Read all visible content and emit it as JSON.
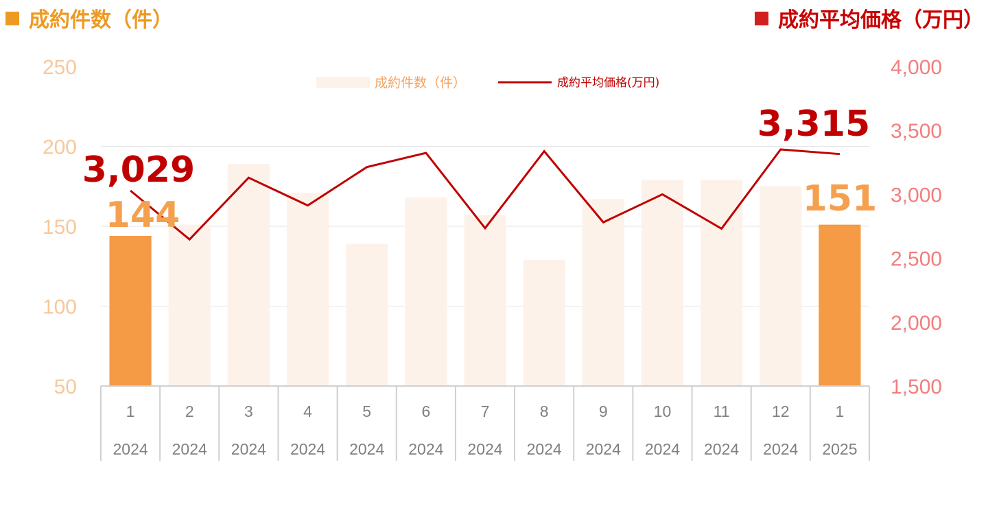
{
  "header": {
    "left_title": "成約件数（件）",
    "right_title": "成約平均価格（万円）"
  },
  "colors": {
    "left_header": "#ED9A23",
    "right_header": "#C80000",
    "bar_highlight": "#F59A45",
    "bar_faded": "#FDF2EA",
    "line": "#C00000"
  },
  "chart_data": {
    "type": "bar+line",
    "categories": [
      "1",
      "2",
      "3",
      "4",
      "5",
      "6",
      "7",
      "8",
      "9",
      "10",
      "11",
      "12",
      "1"
    ],
    "years": [
      "2024",
      "2024",
      "2024",
      "2024",
      "2024",
      "2024",
      "2024",
      "2024",
      "2024",
      "2024",
      "2024",
      "2024",
      "2025"
    ],
    "series": [
      {
        "name": "成約件数（件）",
        "type": "bar",
        "axis": "left",
        "values": [
          144,
          151,
          189,
          171,
          139,
          168,
          157,
          129,
          167,
          179,
          179,
          175,
          151
        ],
        "highlighted": [
          0,
          12
        ]
      },
      {
        "name": "成約平均価格(万円)",
        "type": "line",
        "axis": "right",
        "values": [
          3029,
          2647,
          3130,
          2913,
          3213,
          3324,
          2735,
          3337,
          2781,
          3000,
          2731,
          3351,
          3315
        ]
      }
    ],
    "left_axis": {
      "min": 50,
      "max": 250,
      "ticks": [
        "250",
        "200",
        "150",
        "100",
        "50"
      ]
    },
    "right_axis": {
      "min": 1500,
      "max": 4000,
      "ticks": [
        "4,000",
        "3,500",
        "3,000",
        "2,500",
        "2,000",
        "1,500"
      ]
    },
    "data_labels": {
      "line_first": "3,029",
      "line_last": "3,315",
      "bar_first": "144",
      "bar_last": "151"
    },
    "legend": {
      "position": "top-center"
    },
    "grid": true
  }
}
